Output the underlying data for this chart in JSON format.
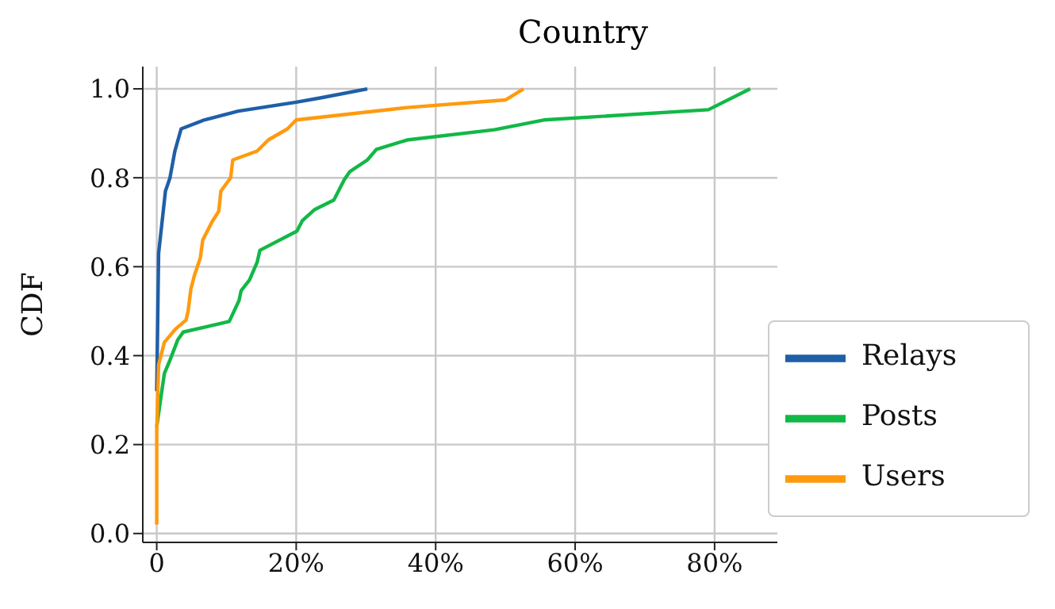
{
  "chart_data": {
    "type": "line",
    "title": "Country",
    "ylabel": "CDF",
    "xlim": [
      -2,
      89
    ],
    "ylim": [
      -0.02,
      1.05
    ],
    "xticks": [
      {
        "value": 0,
        "label": "0"
      },
      {
        "value": 20,
        "label": "20%"
      },
      {
        "value": 40,
        "label": "40%"
      },
      {
        "value": 60,
        "label": "60%"
      },
      {
        "value": 80,
        "label": "80%"
      }
    ],
    "yticks": [
      {
        "value": 0,
        "label": "0.0"
      },
      {
        "value": 0.2,
        "label": "0.2"
      },
      {
        "value": 0.4,
        "label": "0.4"
      },
      {
        "value": 0.6,
        "label": "0.6"
      },
      {
        "value": 0.8,
        "label": "0.8"
      },
      {
        "value": 1,
        "label": "1.0"
      }
    ],
    "grid": true,
    "legend": "bottom right",
    "marker": "none",
    "line_style": "solid",
    "series": [
      {
        "name": "Relays",
        "color": "#1f5fa8",
        "x": [
          0,
          0.27,
          1.25,
          1.9,
          2.6,
          3.5,
          6.8,
          11.7,
          20,
          23.6,
          30.2
        ],
        "values": [
          0.32,
          0.63,
          0.77,
          0.8,
          0.86,
          0.91,
          0.93,
          0.95,
          0.97,
          0.98,
          1.0
        ]
      },
      {
        "name": "Posts",
        "color": "#12b847",
        "x": [
          0,
          0.54,
          1.1,
          1.9,
          3,
          3.8,
          10.4,
          11.8,
          12.1,
          13.3,
          14.4,
          14.8,
          20.1,
          20.9,
          22.6,
          25.4,
          26.9,
          27.7,
          30.2,
          31.5,
          35.9,
          48.4,
          55.5,
          79.1,
          85.1
        ],
        "values": [
          0.24,
          0.3,
          0.36,
          0.39,
          0.435,
          0.453,
          0.477,
          0.524,
          0.546,
          0.57,
          0.61,
          0.637,
          0.68,
          0.704,
          0.728,
          0.75,
          0.796,
          0.814,
          0.84,
          0.864,
          0.885,
          0.908,
          0.93,
          0.953,
          1.0
        ]
      },
      {
        "name": "Users",
        "color": "#ff9a0e",
        "x": [
          0,
          0,
          0.27,
          1.1,
          2.7,
          4.2,
          4.5,
          4.9,
          5.4,
          6.25,
          6.6,
          7.9,
          8.9,
          9.2,
          10.6,
          10.9,
          14.4,
          16,
          18.75,
          20,
          35.9,
          50,
          52.6
        ],
        "values": [
          0.02,
          0.23,
          0.38,
          0.43,
          0.46,
          0.48,
          0.5,
          0.55,
          0.58,
          0.62,
          0.66,
          0.7,
          0.725,
          0.77,
          0.8,
          0.84,
          0.86,
          0.885,
          0.91,
          0.93,
          0.958,
          0.975,
          1.0
        ]
      }
    ]
  }
}
